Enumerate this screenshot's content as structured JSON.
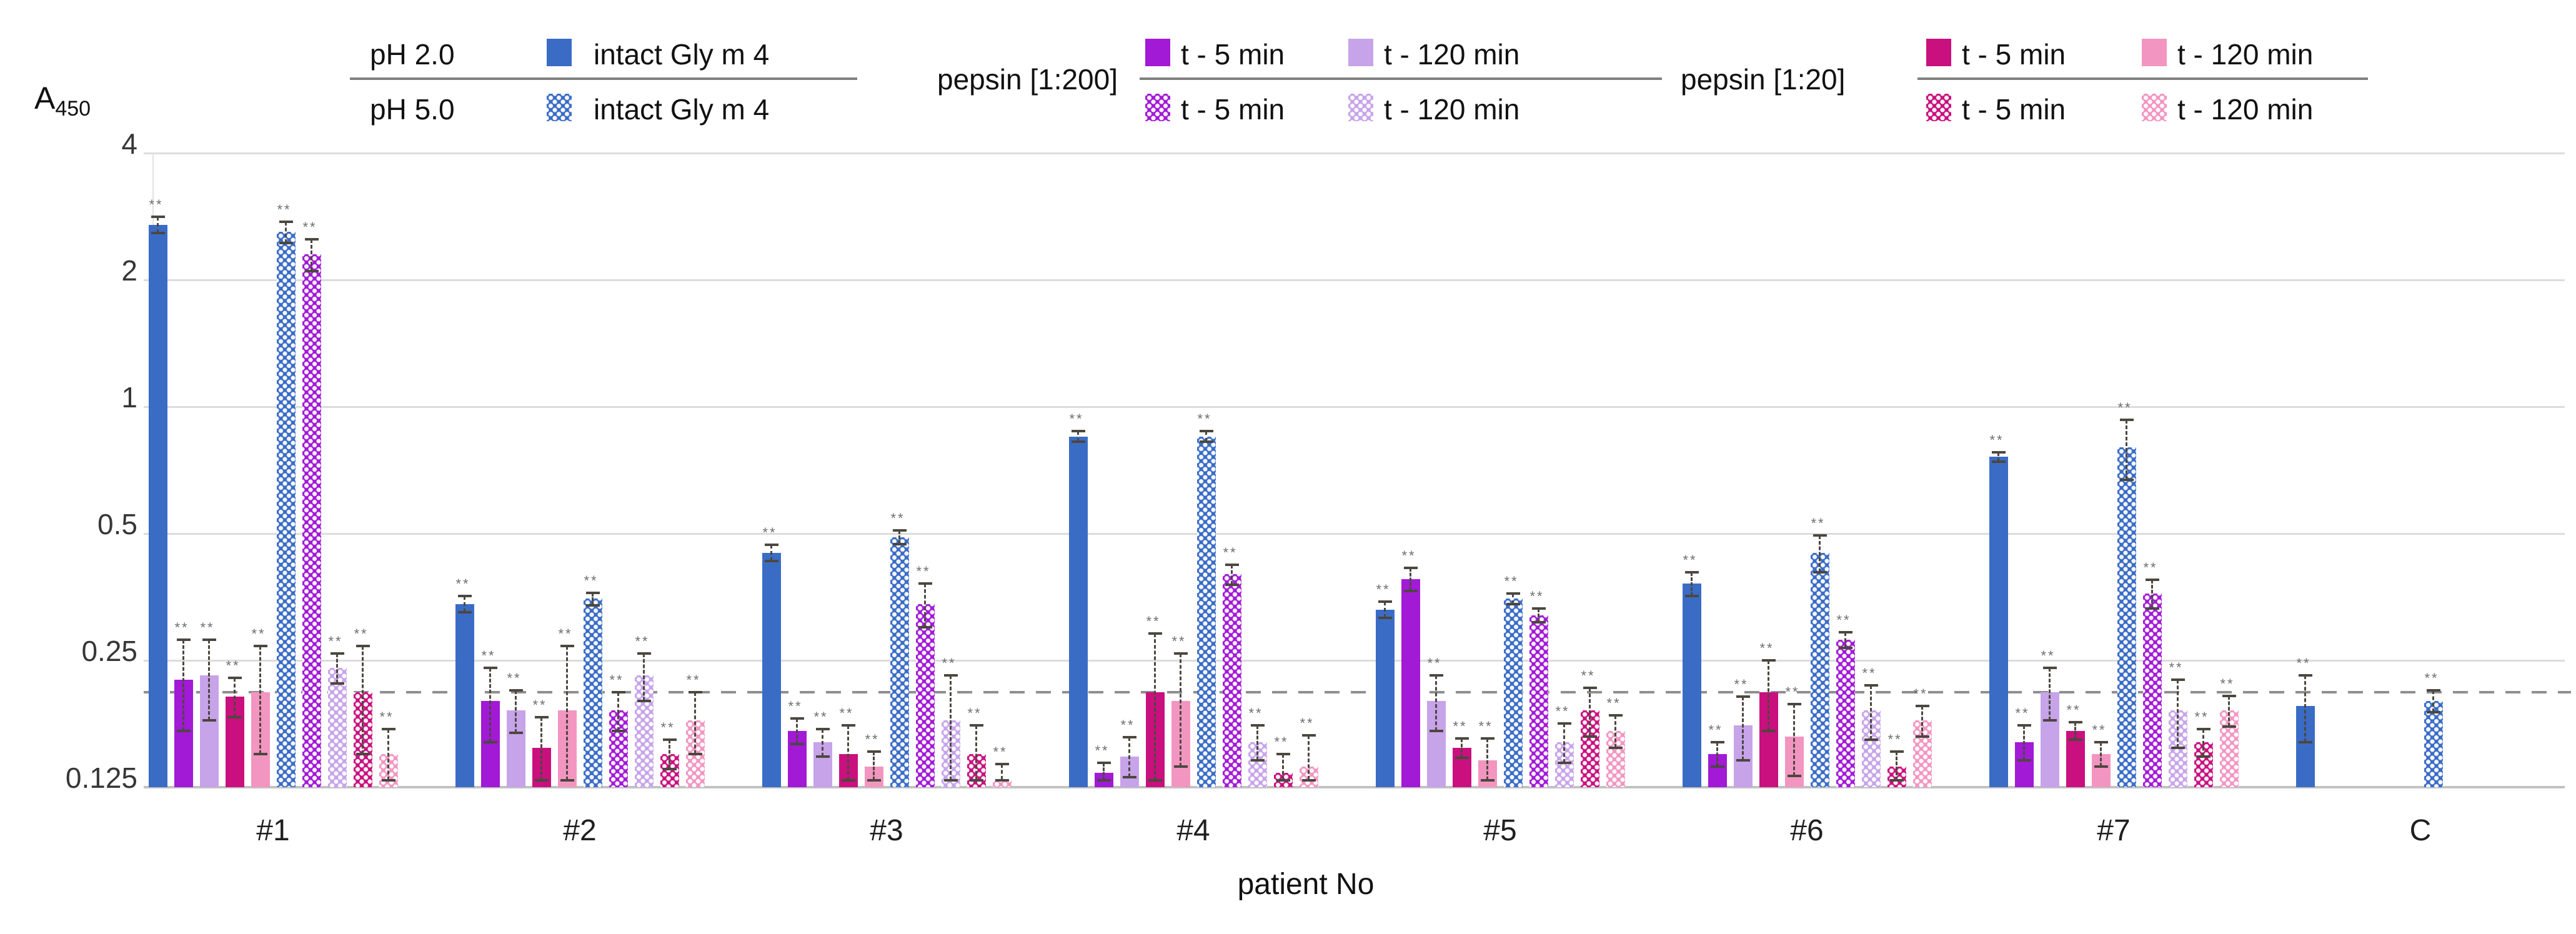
{
  "y_axis": {
    "label": "A",
    "label_sub": "450",
    "ticks": [
      {
        "label": "4",
        "value": 4
      },
      {
        "label": "2",
        "value": 2
      },
      {
        "label": "1",
        "value": 1
      },
      {
        "label": "0.5",
        "value": 0.5
      },
      {
        "label": "0.25",
        "value": 0.25
      },
      {
        "label": "0.125",
        "value": 0.125
      }
    ]
  },
  "x_axis": {
    "label": "patient No"
  },
  "legend": {
    "ph_group": {
      "top": "pH 2.0",
      "bottom": "pH 5.0",
      "item_label": "intact Gly m 4"
    },
    "pepsin_200": {
      "title": "pepsin [1:200]",
      "t5": "t - 5 min",
      "t120": "t - 120 min"
    },
    "pepsin_20": {
      "title": "pepsin [1:20]",
      "t5": "t - 5 min",
      "t120": "t - 120 min"
    }
  },
  "colors": {
    "blue": "#3A6CC6",
    "purple": "#A219D6",
    "lavender": "#C7A3EA",
    "magenta": "#C9107E",
    "pink": "#F395C1",
    "grid": "#DCDCDC",
    "cutoff": "#8F8F8F"
  },
  "significance_mark": "**",
  "chart_data": {
    "type": "bar",
    "scale": "log2",
    "ylim": [
      0.125,
      4
    ],
    "grid": true,
    "cutoff_line": 0.21,
    "categories": [
      "#1",
      "#2",
      "#3",
      "#4",
      "#5",
      "#6",
      "#7",
      "C"
    ],
    "series": [
      {
        "name": "pH 2.0 intact Gly m 4",
        "color": "#3A6CC6",
        "pattern": "solid",
        "values": [
          2.7,
          0.34,
          0.45,
          0.85,
          0.33,
          0.38,
          0.76,
          0.195
        ],
        "errors": [
          0.12,
          0.015,
          0.02,
          0.025,
          0.015,
          0.025,
          0.02,
          0.035
        ]
      },
      {
        "name": "pH 2.0 pepsin [1:200] t - 5 min",
        "color": "#A219D6",
        "pattern": "solid",
        "values": [
          0.225,
          0.2,
          0.17,
          0.135,
          0.39,
          0.15,
          0.16,
          null
        ],
        "errors": [
          0.055,
          0.04,
          0.012,
          0.008,
          0.025,
          0.01,
          0.015,
          null
        ]
      },
      {
        "name": "pH 2.0 pepsin [1:200] t - 120 min",
        "color": "#C7A3EA",
        "pattern": "solid",
        "values": [
          0.23,
          0.19,
          0.16,
          0.148,
          0.2,
          0.175,
          0.21,
          null
        ],
        "errors": [
          0.05,
          0.022,
          0.012,
          0.016,
          0.03,
          0.03,
          0.03,
          null
        ]
      },
      {
        "name": "pH 2.0 pepsin [1:20] t - 5 min",
        "color": "#C9107E",
        "pattern": "solid",
        "values": [
          0.205,
          0.155,
          0.15,
          0.21,
          0.155,
          0.21,
          0.17,
          null
        ],
        "errors": [
          0.022,
          0.028,
          0.025,
          0.08,
          0.008,
          0.04,
          0.008,
          null
        ]
      },
      {
        "name": "pH 2.0 pepsin [1:20] t - 120 min",
        "color": "#F395C1",
        "pattern": "solid",
        "values": [
          0.21,
          0.19,
          0.14,
          0.2,
          0.145,
          0.165,
          0.15,
          null
        ],
        "errors": [
          0.06,
          0.08,
          0.012,
          0.06,
          0.018,
          0.032,
          0.01,
          null
        ]
      },
      {
        "name": "pH 5.0 intact Gly m 4",
        "color": "#3A6CC6",
        "pattern": "dotted",
        "values": [
          2.6,
          0.35,
          0.49,
          0.85,
          0.35,
          0.45,
          0.8,
          0.2
        ],
        "errors": [
          0.15,
          0.012,
          0.018,
          0.025,
          0.01,
          0.045,
          0.13,
          0.012
        ]
      },
      {
        "name": "pH 5.0 pepsin [1:200] t - 5 min",
        "color": "#A219D6",
        "pattern": "dotted",
        "values": [
          2.3,
          0.19,
          0.34,
          0.4,
          0.32,
          0.28,
          0.36,
          null
        ],
        "errors": [
          0.2,
          0.02,
          0.04,
          0.022,
          0.012,
          0.012,
          0.028,
          null
        ]
      },
      {
        "name": "pH 5.0 pepsin [1:200] t - 120 min",
        "color": "#C7A3EA",
        "pattern": "dotted",
        "values": [
          0.24,
          0.23,
          0.18,
          0.16,
          0.16,
          0.19,
          0.19,
          null
        ],
        "errors": [
          0.02,
          0.03,
          0.05,
          0.015,
          0.017,
          0.028,
          0.035,
          null
        ]
      },
      {
        "name": "pH 5.0 pepsin [1:20] t - 5 min",
        "color": "#C9107E",
        "pattern": "dotted",
        "values": [
          0.21,
          0.15,
          0.15,
          0.135,
          0.19,
          0.14,
          0.16,
          null
        ],
        "errors": [
          0.06,
          0.012,
          0.025,
          0.015,
          0.025,
          0.012,
          0.012,
          null
        ]
      },
      {
        "name": "pH 5.0 pepsin [1:20] t - 120 min",
        "color": "#F395C1",
        "pattern": "dotted",
        "values": [
          0.15,
          0.18,
          0.13,
          0.14,
          0.17,
          0.18,
          0.19,
          null
        ],
        "errors": [
          0.022,
          0.03,
          0.012,
          0.026,
          0.015,
          0.015,
          0.016,
          null
        ]
      }
    ]
  }
}
